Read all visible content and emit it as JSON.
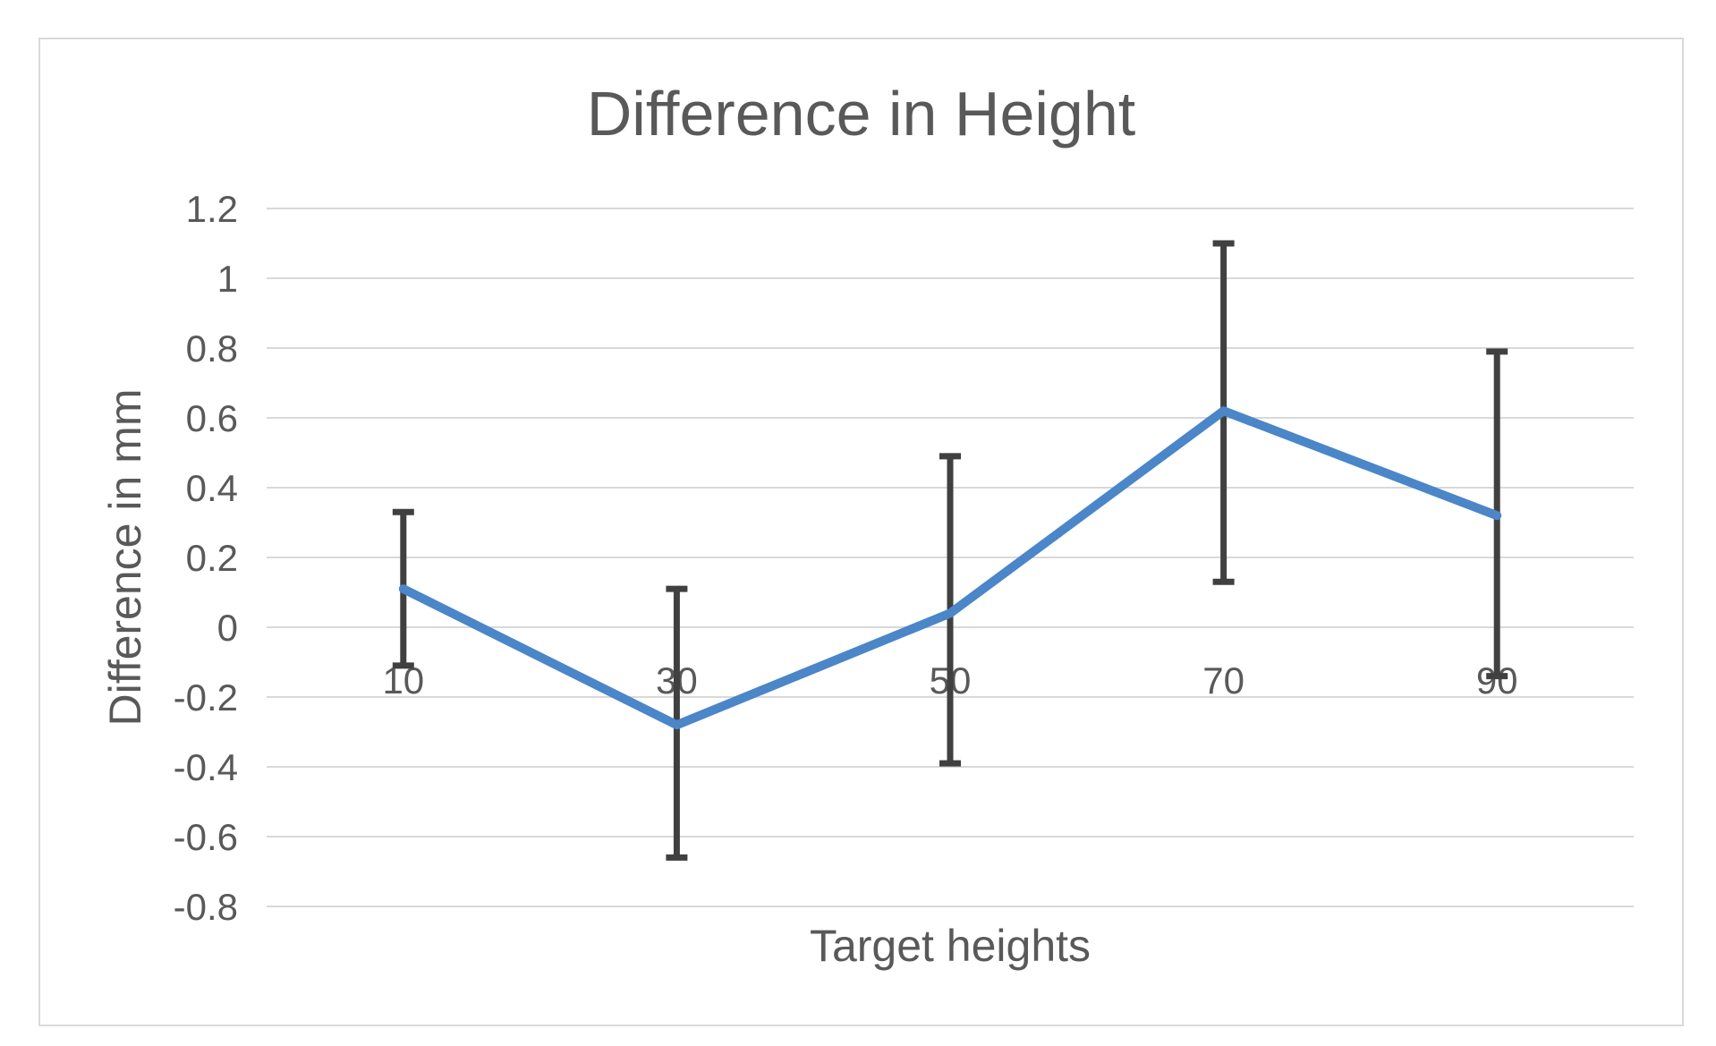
{
  "chart_data": {
    "type": "line",
    "title": "Difference in Height",
    "xlabel": "Target heights",
    "ylabel": "Difference in mm",
    "categories": [
      "10",
      "30",
      "50",
      "70",
      "90"
    ],
    "series": [
      {
        "name": "Difference in Height",
        "values": [
          0.11,
          -0.28,
          0.04,
          0.62,
          0.32
        ],
        "error_plus": [
          0.22,
          0.39,
          0.45,
          0.48,
          0.47
        ],
        "error_minus": [
          0.22,
          0.38,
          0.43,
          0.49,
          0.46
        ]
      }
    ],
    "ylim": [
      -0.8,
      1.2
    ],
    "ytick_step": 0.2,
    "yticks": [
      {
        "value": 1.2,
        "label": "1.2"
      },
      {
        "value": 1.0,
        "label": "1"
      },
      {
        "value": 0.8,
        "label": "0.8"
      },
      {
        "value": 0.6,
        "label": "0.6"
      },
      {
        "value": 0.4,
        "label": "0.4"
      },
      {
        "value": 0.2,
        "label": "0.2"
      },
      {
        "value": 0.0,
        "label": "0"
      },
      {
        "value": -0.2,
        "label": "-0.2"
      },
      {
        "value": -0.4,
        "label": "-0.4"
      },
      {
        "value": -0.6,
        "label": "-0.6"
      },
      {
        "value": -0.8,
        "label": "-0.8"
      }
    ],
    "grid": true,
    "legend": "none",
    "colors": {
      "line": "#4a86c8",
      "error_bar": "#404040",
      "gridline": "#d9d9d9",
      "text": "#595959",
      "chart_border": "#d9d9d9",
      "background": "#ffffff"
    }
  }
}
